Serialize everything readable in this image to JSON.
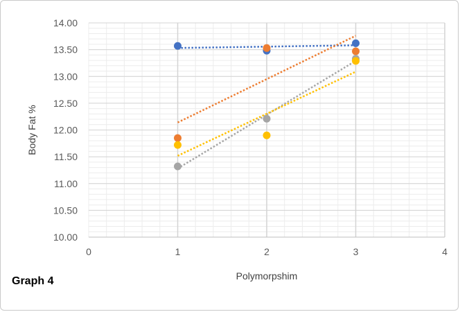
{
  "caption": "Graph 4",
  "chart_data": {
    "type": "scatter",
    "title": "",
    "xlabel": "Polymorpshim",
    "ylabel": "Body Fat %",
    "xlim": [
      0,
      4
    ],
    "ylim": [
      10.0,
      14.0
    ],
    "x_ticks": [
      0,
      1,
      2,
      3,
      4
    ],
    "y_ticks": [
      10.0,
      10.5,
      11.0,
      11.5,
      12.0,
      12.5,
      13.0,
      13.5,
      14.0
    ],
    "y_tick_labels": [
      "10.00",
      "10.50",
      "11.00",
      "11.50",
      "12.00",
      "12.50",
      "13.00",
      "13.50",
      "14.00"
    ],
    "grid": true,
    "legend": "none",
    "trendlines": "linear, dotted",
    "series": [
      {
        "color": "#4472C4",
        "x": [
          1,
          2,
          3
        ],
        "y": [
          13.57,
          13.48,
          13.62
        ]
      },
      {
        "color": "#ED7D31",
        "x": [
          1,
          2,
          3
        ],
        "y": [
          11.85,
          13.53,
          13.47
        ]
      },
      {
        "color": "#A5A5A5",
        "x": [
          1,
          2,
          3
        ],
        "y": [
          11.32,
          12.21,
          13.33
        ]
      },
      {
        "color": "#FFC000",
        "x": [
          1,
          2,
          3
        ],
        "y": [
          11.72,
          11.9,
          13.29
        ]
      }
    ]
  }
}
